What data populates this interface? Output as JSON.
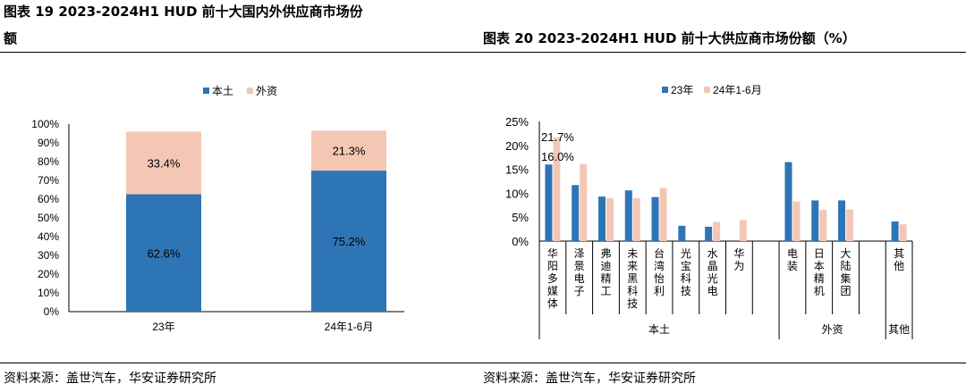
{
  "left": {
    "title_line1": "图表 19 2023-2024H1 HUD 前十大国内外供应商市场份",
    "title_line2": "额",
    "source": "资料来源：盖世汽车，华安证券研究所"
  },
  "right": {
    "title": "图表 20 2023-2024H1 HUD 前十大供应商市场份额（%）",
    "source": "资料来源：盖世汽车，华安证券研究所"
  },
  "colors": {
    "blue": "#2E75B6",
    "pink": "#F4C7B5"
  },
  "chart_data": [
    {
      "type": "bar",
      "stacked": true,
      "categories": [
        "23年",
        "24年1-6月"
      ],
      "series": [
        {
          "name": "本土",
          "values": [
            62.6,
            75.2
          ],
          "labels": [
            "62.6%",
            "75.2%"
          ]
        },
        {
          "name": "外资",
          "values": [
            33.4,
            21.3
          ],
          "labels": [
            "33.4%",
            "21.3%"
          ]
        }
      ],
      "ylim": [
        0,
        100
      ],
      "yticks": [
        "0%",
        "10%",
        "20%",
        "30%",
        "40%",
        "50%",
        "60%",
        "70%",
        "80%",
        "90%",
        "100%"
      ],
      "legend": "top"
    },
    {
      "type": "bar",
      "categories": [
        "华阳多媒体",
        "泽景电子",
        "弗迪精工",
        "未来黑科技",
        "台湾怡利",
        "光宝科技",
        "水晶光电",
        "华为",
        "",
        "电装",
        "日本精机",
        "大陆集团",
        "",
        "其他"
      ],
      "groups": [
        "本土",
        "外资",
        "其他"
      ],
      "series": [
        {
          "name": "23年",
          "values": [
            16.0,
            11.7,
            9.3,
            10.6,
            9.2,
            3.2,
            3.0,
            null,
            null,
            16.5,
            8.5,
            8.5,
            null,
            4.1
          ]
        },
        {
          "name": "24年1-6月",
          "values": [
            21.7,
            16.1,
            9.0,
            9.0,
            11.1,
            null,
            4.0,
            4.4,
            null,
            8.3,
            6.5,
            6.6,
            null,
            3.5
          ]
        }
      ],
      "annotations": [
        "21.7%",
        "16.0%"
      ],
      "ylim": [
        0,
        25
      ],
      "yticks": [
        "0%",
        "5%",
        "10%",
        "15%",
        "20%",
        "25%"
      ],
      "legend": "top"
    }
  ]
}
